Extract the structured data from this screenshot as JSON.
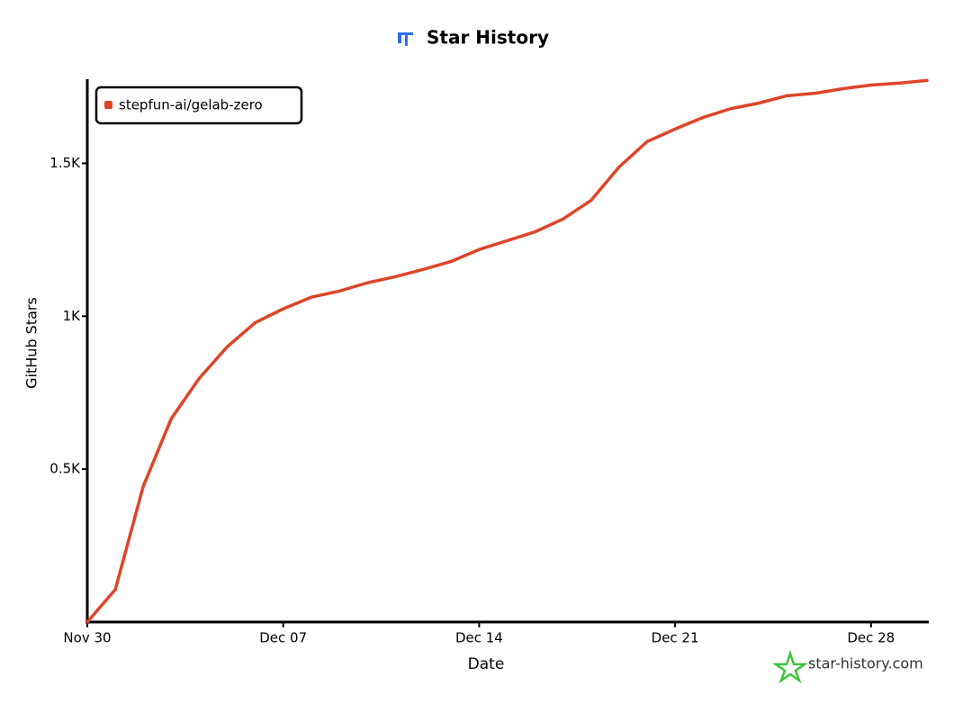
{
  "chart_data": {
    "type": "line",
    "title": "Star History",
    "x_label": "Date",
    "y_label": "GitHub Stars",
    "watermark": "star-history.com",
    "x": [
      "Nov 30",
      "Dec 01",
      "Dec 02",
      "Dec 03",
      "Dec 04",
      "Dec 05",
      "Dec 06",
      "Dec 07",
      "Dec 08",
      "Dec 09",
      "Dec 10",
      "Dec 11",
      "Dec 12",
      "Dec 13",
      "Dec 14",
      "Dec 15",
      "Dec 16",
      "Dec 17",
      "Dec 18",
      "Dec 19",
      "Dec 20",
      "Dec 21",
      "Dec 22",
      "Dec 23",
      "Dec 24",
      "Dec 25",
      "Dec 26",
      "Dec 27",
      "Dec 28",
      "Dec 29",
      "Dec 30"
    ],
    "xticks": [
      "Nov 30",
      "Dec 07",
      "Dec 14",
      "Dec 21",
      "Dec 28"
    ],
    "series": [
      {
        "name": "stepfun-ai/gelab-zero",
        "color": "#dd4528",
        "values": [
          0,
          106,
          444,
          665,
          797,
          900,
          979,
          1024,
          1062,
          1082,
          1109,
          1129,
          1153,
          1179,
          1218,
          1247,
          1276,
          1318,
          1379,
          1488,
          1571,
          1612,
          1650,
          1679,
          1697,
          1721,
          1729,
          1744,
          1756,
          1762,
          1771
        ]
      }
    ],
    "ylim": [
      0,
      1775
    ],
    "yticks": [
      {
        "value": 500,
        "label": "0.5K"
      },
      {
        "value": 1000,
        "label": "1K"
      },
      {
        "value": 1500,
        "label": "1.5K"
      }
    ],
    "legend": "top-left",
    "grid": false
  }
}
